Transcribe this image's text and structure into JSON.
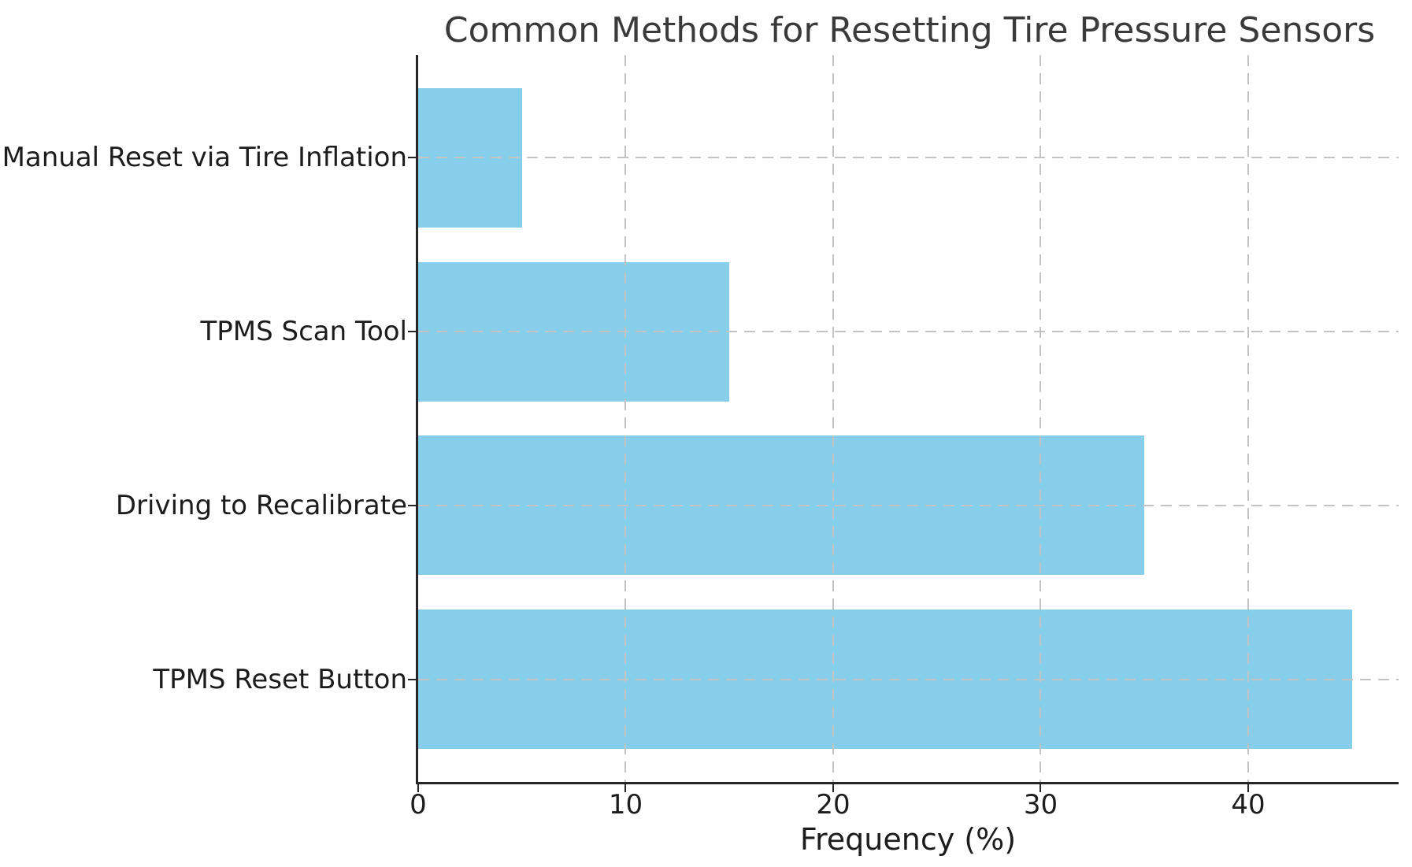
{
  "chart_data": {
    "type": "bar",
    "orientation": "horizontal",
    "title": "Common Methods for Resetting Tire Pressure Sensors",
    "categories_top_to_bottom": [
      "Manual Reset via Tire Inflation",
      "TPMS Scan Tool",
      "Driving to Recalibrate",
      "TPMS Reset Button"
    ],
    "values": [
      5,
      15,
      35,
      45
    ],
    "xlabel": "Frequency (%)",
    "ylabel": "",
    "xticks": [
      0,
      10,
      20,
      30,
      40
    ],
    "xlim": [
      0,
      47.25
    ],
    "bar_color": "#87CEEB",
    "grid": {
      "visible": true,
      "style": "dashed",
      "color": "#c3c3c3",
      "above_bars": true
    },
    "legend": {
      "visible": false
    },
    "spines": {
      "left": true,
      "bottom": true,
      "top": false,
      "right": false
    }
  },
  "colors": {
    "background": "#ffffff",
    "spine": "#262626",
    "title_text": "#3a3a3a",
    "tick_text": "#1c1c1c"
  }
}
